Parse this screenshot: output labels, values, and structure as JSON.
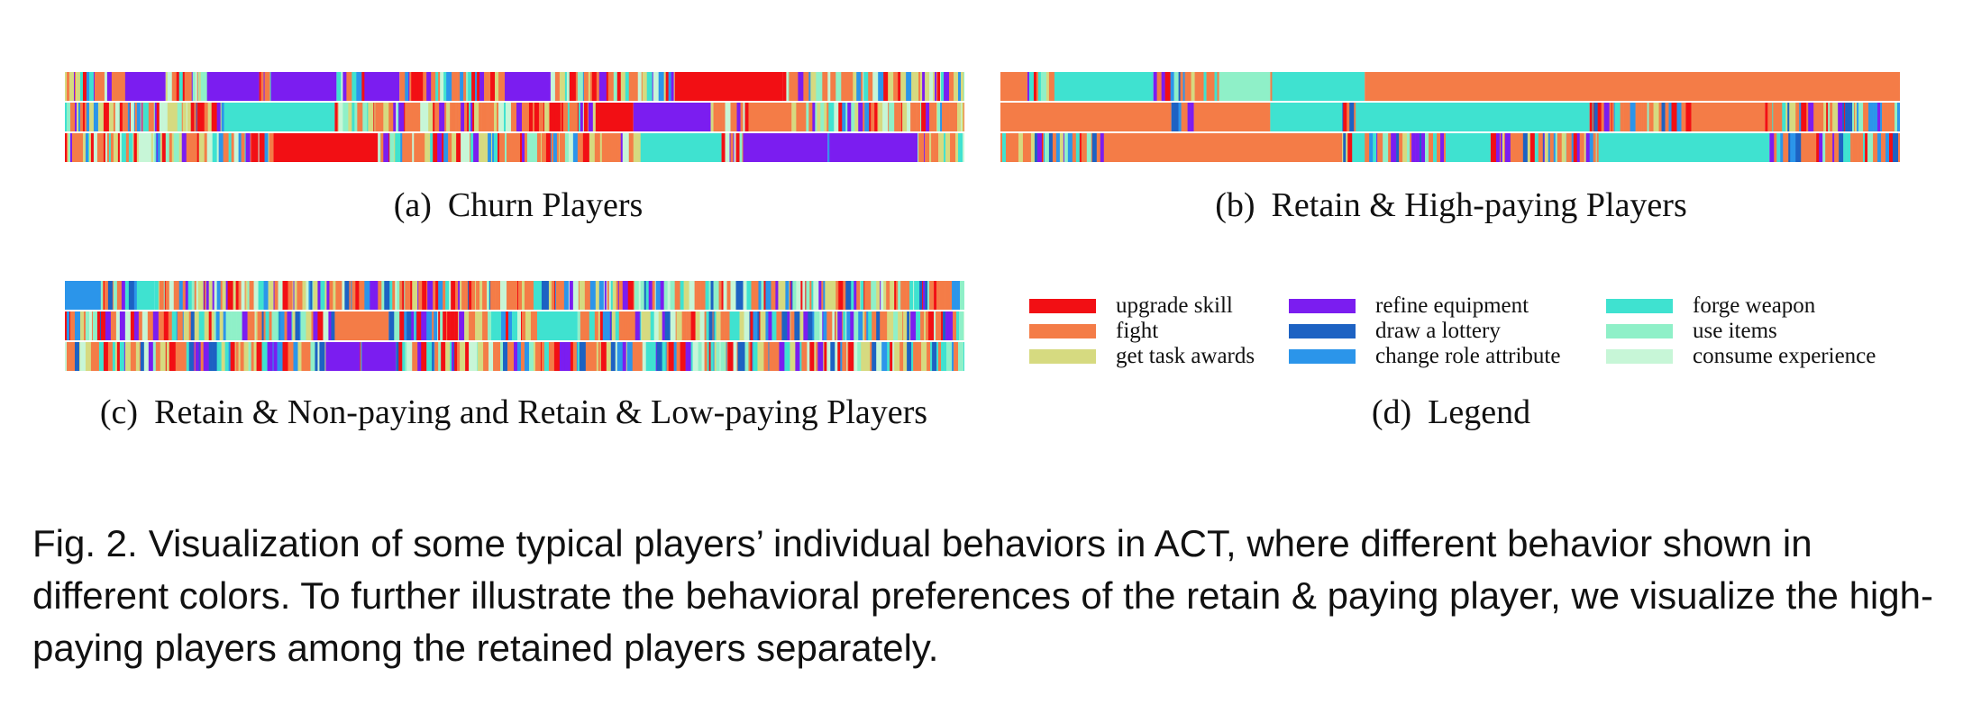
{
  "panels": {
    "a": {
      "label": "(a)",
      "title": "Churn Players"
    },
    "b": {
      "label": "(b)",
      "title": "Retain & High-paying Players"
    },
    "c": {
      "label": "(c)",
      "title": "Retain & Non-paying and Retain & Low-paying Players"
    },
    "d": {
      "label": "(d)",
      "title": "Legend"
    }
  },
  "legend": [
    {
      "label": "upgrade skill",
      "color": "#f20f14"
    },
    {
      "label": "fight",
      "color": "#f47c47"
    },
    {
      "label": "get task awards",
      "color": "#d6da80"
    },
    {
      "label": "refine equipment",
      "color": "#7b1df0"
    },
    {
      "label": "draw a lottery",
      "color": "#1d62c3"
    },
    {
      "label": "change role attribute",
      "color": "#2b95ea"
    },
    {
      "label": "forge weapon",
      "color": "#3fe2d0"
    },
    {
      "label": "use items",
      "color": "#8ff0c8"
    },
    {
      "label": "consume experience",
      "color": "#c7f6d7"
    }
  ],
  "caption": {
    "fig_label": "Fig. 2.",
    "text": "Visualization of some typical players’ individual behaviors in ACT, where different behavior shown in different colors. To further illustrate the behavioral preferences of the retain & paying player, we visualize the high-paying players among the retained players separately."
  }
}
